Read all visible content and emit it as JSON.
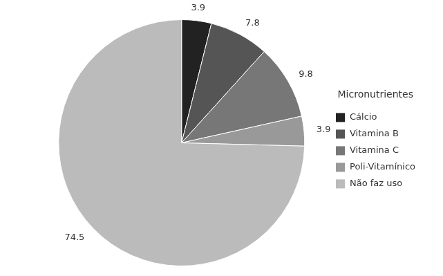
{
  "chart_data": {
    "type": "pie",
    "legend_title": "Micronutrientes",
    "categories": [
      "Cálcio",
      "Vitamina B",
      "Vitamina C",
      "Poli-Vitamínico",
      "Não faz uso"
    ],
    "values": [
      3.9,
      7.8,
      9.8,
      3.9,
      74.5
    ],
    "colors": [
      "#222222",
      "#555555",
      "#777777",
      "#999999",
      "#bbbbbb"
    ],
    "legend": "right",
    "data_labels": true
  }
}
